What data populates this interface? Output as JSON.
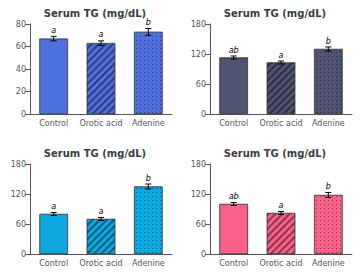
{
  "chart_data": [
    {
      "type": "bar",
      "title": "Serum TG (mg/dL)",
      "categories": [
        "Control",
        "Orotic acid",
        "Adenine"
      ],
      "values": [
        67,
        63,
        73
      ],
      "errors": [
        2,
        2,
        3
      ],
      "annotations": [
        "a",
        "a",
        "b"
      ],
      "ylim": [
        0,
        80
      ],
      "yticks": [
        0,
        20,
        40,
        60,
        80
      ],
      "grid": false
    },
    {
      "type": "bar",
      "title": "Serum TG (mg/dL)",
      "categories": [
        "Control",
        "Orotic acid",
        "Adenine"
      ],
      "values": [
        113,
        103,
        130
      ],
      "errors": [
        3,
        3,
        4
      ],
      "annotations": [
        "ab",
        "a",
        "b"
      ],
      "ylim": [
        0,
        180
      ],
      "yticks": [
        0,
        60,
        120,
        180
      ],
      "grid": false
    },
    {
      "type": "bar",
      "title": "Serum TG (mg/dL)",
      "categories": [
        "Control",
        "Orotic acid",
        "Adenine"
      ],
      "values": [
        80,
        70,
        135
      ],
      "errors": [
        3,
        3,
        5
      ],
      "annotations": [
        "a",
        "a",
        "b"
      ],
      "ylim": [
        0,
        180
      ],
      "yticks": [
        0,
        60,
        120,
        180
      ],
      "grid": false
    },
    {
      "type": "bar",
      "title": "Serum TG (mg/dL)",
      "categories": [
        "Control",
        "Orotic acid",
        "Adenine"
      ],
      "values": [
        100,
        82,
        118
      ],
      "errors": [
        3,
        3,
        5
      ],
      "annotations": [
        "ab",
        "a",
        "b"
      ],
      "ylim": [
        0,
        180
      ],
      "yticks": [
        0,
        60,
        120,
        180
      ],
      "grid": false
    }
  ]
}
